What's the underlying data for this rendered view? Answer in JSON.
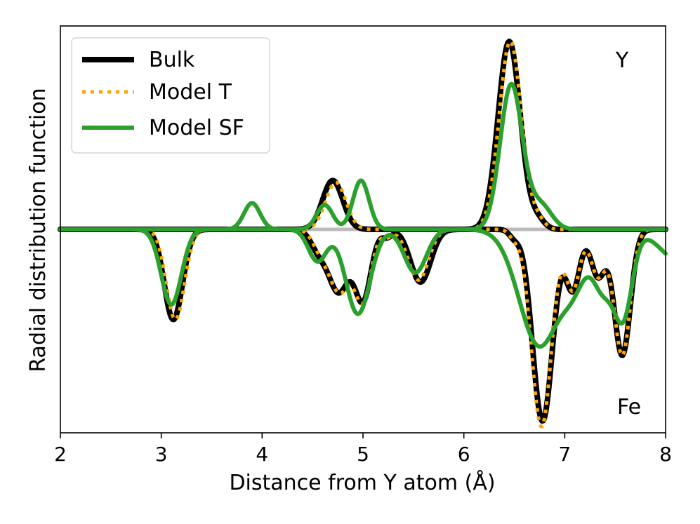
{
  "chart_data": {
    "type": "line",
    "title": "",
    "xlabel": "Distance from Y atom (Å)",
    "ylabel": "Radial distribution function",
    "xlim": [
      2,
      8
    ],
    "ylim": [
      -1.1,
      1.1
    ],
    "xticks": [
      2,
      3,
      4,
      5,
      6,
      7,
      8
    ],
    "ytick_labels_shown": false,
    "grid": false,
    "legend_position": "top-left",
    "annotations": [
      "Y",
      "Fe"
    ],
    "baseline": {
      "y": 0,
      "color": "#bbbbbb"
    },
    "series": [
      {
        "name": "Bulk",
        "color": "#000000",
        "style": "solid",
        "upper_peaks": [
          [
            4.7,
            0.26,
            0.1
          ],
          [
            6.45,
            1.0,
            0.11
          ],
          [
            6.73,
            0.05,
            0.07
          ]
        ],
        "lower_peaks": [
          [
            3.12,
            0.48,
            0.09
          ],
          [
            4.56,
            0.1,
            0.08
          ],
          [
            4.76,
            0.33,
            0.1
          ],
          [
            5.0,
            0.37,
            0.08
          ],
          [
            5.24,
            0.04,
            0.05
          ],
          [
            5.57,
            0.28,
            0.1
          ],
          [
            6.78,
            1.02,
            0.1
          ],
          [
            6.5,
            0.04,
            0.05
          ],
          [
            7.08,
            0.32,
            0.07
          ],
          [
            7.33,
            0.25,
            0.07
          ],
          [
            7.57,
            0.67,
            0.08
          ]
        ]
      },
      {
        "name": "Model T",
        "color": "#FFA500",
        "style": "dotted",
        "upper_peaks": [
          [
            4.73,
            0.25,
            0.1
          ],
          [
            6.46,
            1.0,
            0.11
          ],
          [
            6.73,
            0.05,
            0.07
          ]
        ],
        "lower_peaks": [
          [
            3.14,
            0.48,
            0.09
          ],
          [
            4.58,
            0.1,
            0.08
          ],
          [
            4.77,
            0.33,
            0.1
          ],
          [
            5.0,
            0.37,
            0.08
          ],
          [
            5.24,
            0.04,
            0.05
          ],
          [
            5.55,
            0.27,
            0.1
          ],
          [
            6.77,
            1.05,
            0.1
          ],
          [
            6.5,
            0.04,
            0.05
          ],
          [
            7.08,
            0.32,
            0.07
          ],
          [
            7.33,
            0.25,
            0.07
          ],
          [
            7.57,
            0.67,
            0.08
          ]
        ]
      },
      {
        "name": "Model SF",
        "color": "#2ca02c",
        "style": "solid",
        "upper_peaks": [
          [
            3.9,
            0.14,
            0.08
          ],
          [
            4.62,
            0.13,
            0.08
          ],
          [
            4.98,
            0.26,
            0.08
          ],
          [
            6.47,
            0.77,
            0.11
          ],
          [
            6.76,
            0.13,
            0.11
          ]
        ],
        "lower_peaks": [
          [
            3.1,
            0.4,
            0.1
          ],
          [
            4.55,
            0.17,
            0.09
          ],
          [
            4.95,
            0.45,
            0.12
          ],
          [
            5.52,
            0.23,
            0.11
          ],
          [
            6.75,
            0.62,
            0.2
          ],
          [
            7.1,
            0.22,
            0.12
          ],
          [
            7.38,
            0.3,
            0.1
          ],
          [
            7.58,
            0.45,
            0.09
          ],
          [
            8.15,
            0.17,
            0.2
          ]
        ]
      }
    ]
  }
}
